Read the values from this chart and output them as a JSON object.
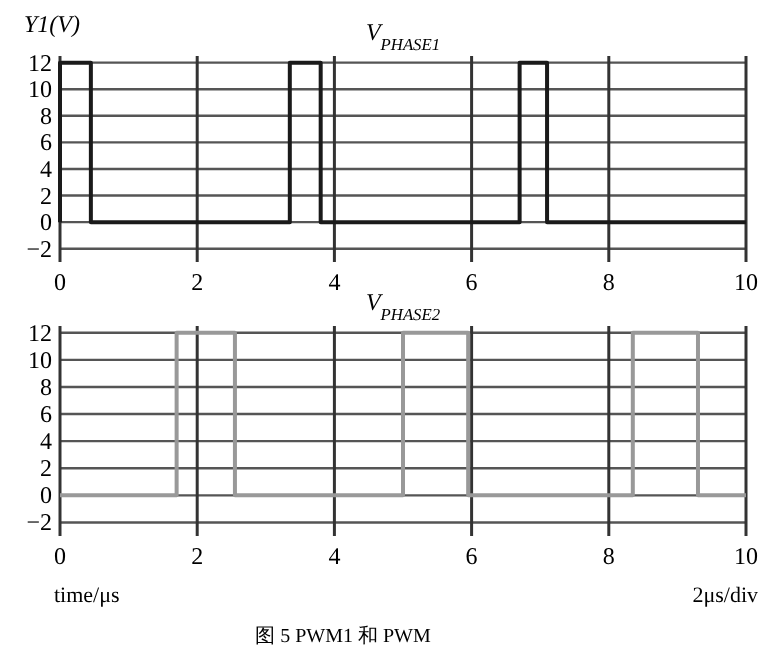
{
  "chart_data": [
    {
      "type": "line",
      "title": "V$_{PHASE1}$",
      "ylabel": "Y1(V)",
      "xlim": [
        0,
        10
      ],
      "ylim": [
        -3,
        12.5
      ],
      "xticks": [
        0,
        2,
        4,
        6,
        8,
        10
      ],
      "yticks": [
        {
          "value": -2,
          "label": "−2"
        },
        0,
        2,
        4,
        6,
        8,
        10,
        12
      ],
      "grid": true,
      "series": [
        {
          "color": "#1a1a1a",
          "x": [
            0,
            0,
            0.45,
            0.45,
            3.35,
            3.35,
            3.8,
            3.8,
            6.7,
            6.7,
            7.1,
            7.1,
            10
          ],
          "values": [
            0,
            12,
            12,
            0,
            0,
            12,
            12,
            0,
            0,
            12,
            12,
            0,
            0
          ]
        }
      ]
    },
    {
      "type": "line",
      "title": "V$_{PHASE2}$",
      "xlabel": "time/μs",
      "xlim": [
        0,
        10
      ],
      "ylim": [
        -3,
        12.5
      ],
      "xticks": [
        0,
        2,
        4,
        6,
        8,
        10
      ],
      "yticks": [
        {
          "value": -2,
          "label": "−2"
        },
        0,
        2,
        4,
        6,
        8,
        10,
        12
      ],
      "grid": true,
      "annotations": [
        "2μs/div",
        "图 5  PWM1 和 PWM"
      ],
      "series": [
        {
          "color": "#999999",
          "x": [
            0,
            1.7,
            1.7,
            2.55,
            2.55,
            5.0,
            5.0,
            5.95,
            5.95,
            8.35,
            8.35,
            9.3,
            9.3,
            10
          ],
          "values": [
            0,
            0,
            12,
            12,
            0,
            0,
            12,
            12,
            0,
            0,
            12,
            12,
            0,
            0
          ]
        }
      ]
    }
  ]
}
